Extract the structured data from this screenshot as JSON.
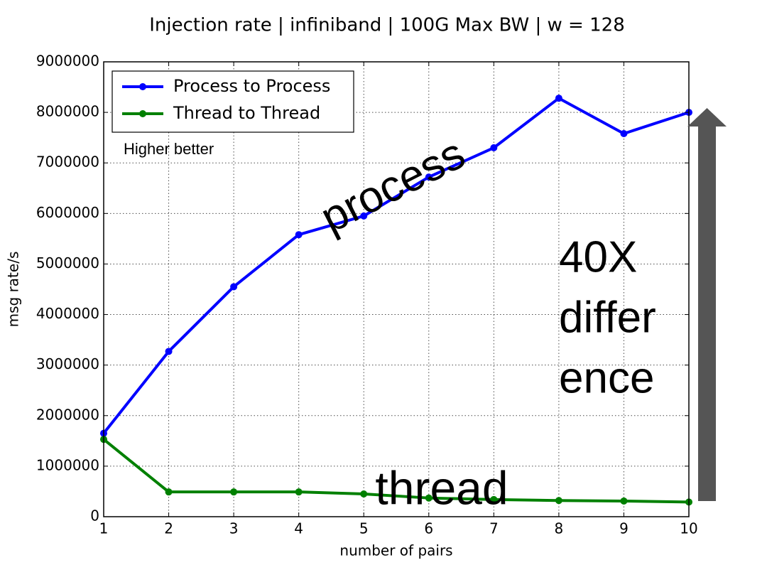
{
  "chart_data": {
    "type": "line",
    "title": "Injection rate | infiniband | 100G Max BW | w = 128",
    "xlabel": "number of pairs",
    "ylabel": "msg rate/s",
    "x": [
      1,
      2,
      3,
      4,
      5,
      6,
      7,
      8,
      9,
      10
    ],
    "series": [
      {
        "name": "Process to Process",
        "color": "#0000ff",
        "values": [
          1650000,
          3270000,
          4550000,
          5580000,
          5950000,
          6720000,
          7300000,
          8280000,
          7580000,
          8000000
        ]
      },
      {
        "name": "Thread to Thread",
        "color": "#008000",
        "values": [
          1530000,
          490000,
          490000,
          490000,
          450000,
          370000,
          340000,
          320000,
          310000,
          290000
        ]
      }
    ],
    "xlim": [
      1,
      10
    ],
    "xticks": [
      1,
      2,
      3,
      4,
      5,
      6,
      7,
      8,
      9,
      10
    ],
    "ylim": [
      0,
      9000000
    ],
    "yticks": [
      0,
      1000000,
      2000000,
      3000000,
      4000000,
      5000000,
      6000000,
      7000000,
      8000000,
      9000000
    ],
    "grid": true,
    "legend": "upper left",
    "annotations": {
      "note": "Higher better",
      "process": "process",
      "thread": "thread",
      "difference": [
        "40X",
        "differ",
        "ence"
      ]
    }
  }
}
